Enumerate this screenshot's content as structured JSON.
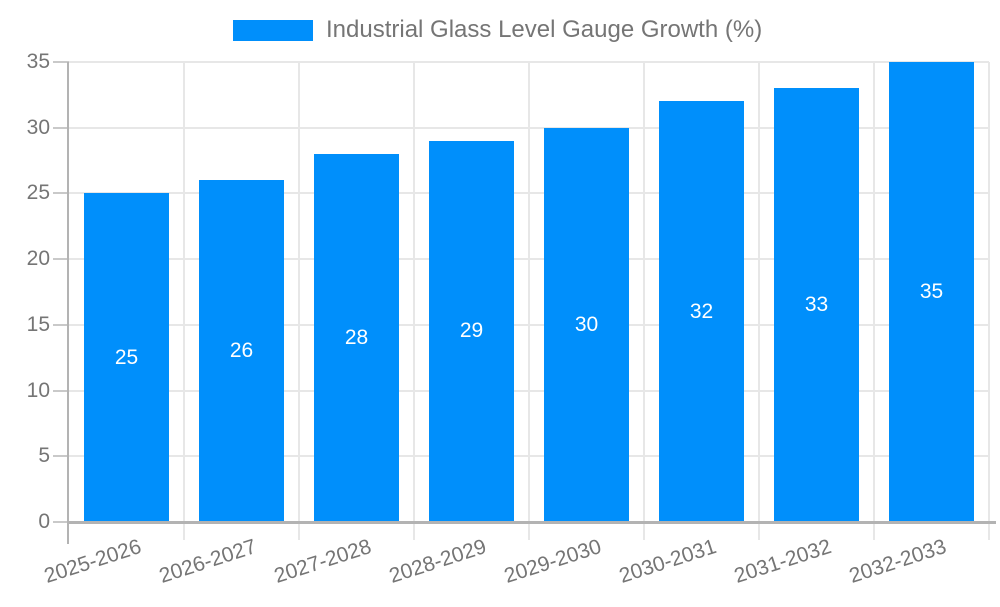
{
  "legend": {
    "label": "Industrial Glass Level Gauge Growth (%)",
    "swatch_color": "#008FFB"
  },
  "chart_data": {
    "type": "bar",
    "title": "Industrial Glass Level Gauge Growth (%)",
    "categories": [
      "2025-2026",
      "2026-2027",
      "2027-2028",
      "2028-2029",
      "2029-2030",
      "2030-2031",
      "2031-2032",
      "2032-2033"
    ],
    "values": [
      25,
      26,
      28,
      29,
      30,
      32,
      33,
      35
    ],
    "xlabel": "",
    "ylabel": "",
    "ylim": [
      0,
      35
    ],
    "yticks": [
      0,
      5,
      10,
      15,
      20,
      25,
      30,
      35
    ],
    "grid": true,
    "legend_position": "top-center",
    "bar_color": "#008FFB",
    "value_label_color": "#ffffff",
    "axis_text_color": "#757575",
    "gridline_color": "#e7e7e7",
    "tick_color": "#c9c9c9",
    "axis_line_color": "#b3b3b3",
    "x_tick_rotation_deg": -18
  }
}
